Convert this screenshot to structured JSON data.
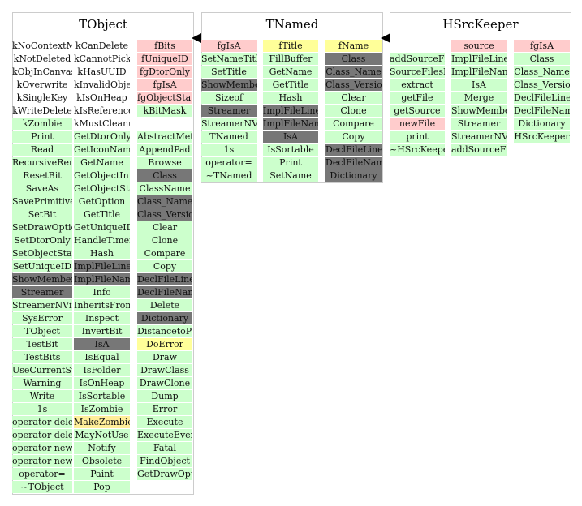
{
  "classes": [
    {
      "title": "TObject",
      "columns": [
        [
          {
            "t": "kNoContextMenu",
            "c": "plain"
          },
          {
            "t": "kNotDeleted",
            "c": "plain"
          },
          {
            "t": "kObjInCanvas",
            "c": "plain"
          },
          {
            "t": "kOverwrite",
            "c": "plain"
          },
          {
            "t": "kSingleKey",
            "c": "plain"
          },
          {
            "t": "kWriteDelete",
            "c": "plain"
          },
          {
            "t": "kZombie",
            "c": "g"
          },
          {
            "t": "Print",
            "c": "g"
          },
          {
            "t": "Read",
            "c": "g"
          },
          {
            "t": "RecursiveRemove",
            "c": "g"
          },
          {
            "t": "ResetBit",
            "c": "g"
          },
          {
            "t": "SaveAs",
            "c": "g"
          },
          {
            "t": "SavePrimitive",
            "c": "g"
          },
          {
            "t": "SetBit",
            "c": "g"
          },
          {
            "t": "SetDrawOption",
            "c": "g"
          },
          {
            "t": "SetDtorOnly",
            "c": "g"
          },
          {
            "t": "SetObjectStat",
            "c": "g"
          },
          {
            "t": "SetUniqueID",
            "c": "g"
          },
          {
            "t": "ShowMembers",
            "c": "d"
          },
          {
            "t": "Streamer",
            "c": "d"
          },
          {
            "t": "StreamerNVirtual",
            "c": "g"
          },
          {
            "t": "SysError",
            "c": "g"
          },
          {
            "t": "TObject",
            "c": "g"
          },
          {
            "t": "TestBit",
            "c": "g"
          },
          {
            "t": "TestBits",
            "c": "g"
          },
          {
            "t": "UseCurrentStyle",
            "c": "g"
          },
          {
            "t": "Warning",
            "c": "g"
          },
          {
            "t": "Write",
            "c": "g"
          },
          {
            "t": "1s",
            "c": "g"
          },
          {
            "t": "operator delete",
            "c": "g"
          },
          {
            "t": "operator delete[]",
            "c": "g"
          },
          {
            "t": "operator new",
            "c": "g"
          },
          {
            "t": "operator new[]",
            "c": "g"
          },
          {
            "t": "operator=",
            "c": "g"
          },
          {
            "t": "~TObject",
            "c": "g"
          }
        ],
        [
          {
            "t": "kCanDelete",
            "c": "plain"
          },
          {
            "t": "kCannotPick",
            "c": "plain"
          },
          {
            "t": "kHasUUID",
            "c": "plain"
          },
          {
            "t": "kInvalidObject",
            "c": "plain"
          },
          {
            "t": "kIsOnHeap",
            "c": "plain"
          },
          {
            "t": "kIsReferenced",
            "c": "plain"
          },
          {
            "t": "kMustCleanup",
            "c": "plain"
          },
          {
            "t": "GetDtorOnly",
            "c": "g"
          },
          {
            "t": "GetIconName",
            "c": "g"
          },
          {
            "t": "GetName",
            "c": "g"
          },
          {
            "t": "GetObjectInfo",
            "c": "g"
          },
          {
            "t": "GetObjectStat",
            "c": "g"
          },
          {
            "t": "GetOption",
            "c": "g"
          },
          {
            "t": "GetTitle",
            "c": "g"
          },
          {
            "t": "GetUniqueID",
            "c": "g"
          },
          {
            "t": "HandleTimer",
            "c": "g"
          },
          {
            "t": "Hash",
            "c": "g"
          },
          {
            "t": "ImplFileLine",
            "c": "d"
          },
          {
            "t": "ImplFileName",
            "c": "d"
          },
          {
            "t": "Info",
            "c": "g"
          },
          {
            "t": "InheritsFrom",
            "c": "g"
          },
          {
            "t": "Inspect",
            "c": "g"
          },
          {
            "t": "InvertBit",
            "c": "g"
          },
          {
            "t": "IsA",
            "c": "d"
          },
          {
            "t": "IsEqual",
            "c": "g"
          },
          {
            "t": "IsFolder",
            "c": "g"
          },
          {
            "t": "IsOnHeap",
            "c": "g"
          },
          {
            "t": "IsSortable",
            "c": "g"
          },
          {
            "t": "IsZombie",
            "c": "g"
          },
          {
            "t": "MakeZombie",
            "c": "y2"
          },
          {
            "t": "MayNotUse",
            "c": "g"
          },
          {
            "t": "Notify",
            "c": "g"
          },
          {
            "t": "Obsolete",
            "c": "g"
          },
          {
            "t": "Paint",
            "c": "g"
          },
          {
            "t": "Pop",
            "c": "g"
          }
        ],
        [
          {
            "t": "fBits",
            "c": "p"
          },
          {
            "t": "fUniqueID",
            "c": "p"
          },
          {
            "t": "fgDtorOnly",
            "c": "p"
          },
          {
            "t": "fgIsA",
            "c": "p"
          },
          {
            "t": "fgObjectStat",
            "c": "p"
          },
          {
            "t": "kBitMask",
            "c": "g"
          },
          {
            "t": "",
            "c": "blank"
          },
          {
            "t": "AbstractMethod",
            "c": "g"
          },
          {
            "t": "AppendPad",
            "c": "g"
          },
          {
            "t": "Browse",
            "c": "g"
          },
          {
            "t": "Class",
            "c": "d"
          },
          {
            "t": "ClassName",
            "c": "g"
          },
          {
            "t": "Class_Name",
            "c": "d"
          },
          {
            "t": "Class_Version",
            "c": "d"
          },
          {
            "t": "Clear",
            "c": "g"
          },
          {
            "t": "Clone",
            "c": "g"
          },
          {
            "t": "Compare",
            "c": "g"
          },
          {
            "t": "Copy",
            "c": "g"
          },
          {
            "t": "DeclFileLine",
            "c": "d"
          },
          {
            "t": "DeclFileName",
            "c": "d"
          },
          {
            "t": "Delete",
            "c": "g"
          },
          {
            "t": "Dictionary",
            "c": "d"
          },
          {
            "t": "DistancetoPrimitive",
            "c": "g"
          },
          {
            "t": "DoError",
            "c": "y"
          },
          {
            "t": "Draw",
            "c": "g"
          },
          {
            "t": "DrawClass",
            "c": "g"
          },
          {
            "t": "DrawClone",
            "c": "g"
          },
          {
            "t": "Dump",
            "c": "g"
          },
          {
            "t": "Error",
            "c": "g"
          },
          {
            "t": "Execute",
            "c": "g"
          },
          {
            "t": "ExecuteEvent",
            "c": "g"
          },
          {
            "t": "Fatal",
            "c": "g"
          },
          {
            "t": "FindObject",
            "c": "g"
          },
          {
            "t": "GetDrawOption",
            "c": "g"
          }
        ]
      ]
    },
    {
      "title": "TNamed",
      "columns": [
        [
          {
            "t": "fgIsA",
            "c": "p"
          },
          {
            "t": "SetNameTitle",
            "c": "g"
          },
          {
            "t": "SetTitle",
            "c": "g"
          },
          {
            "t": "ShowMembers",
            "c": "d"
          },
          {
            "t": "Sizeof",
            "c": "g"
          },
          {
            "t": "Streamer",
            "c": "d"
          },
          {
            "t": "StreamerNVirtual",
            "c": "g"
          },
          {
            "t": "TNamed",
            "c": "g"
          },
          {
            "t": "1s",
            "c": "g"
          },
          {
            "t": "operator=",
            "c": "g"
          },
          {
            "t": "~TNamed",
            "c": "g"
          }
        ],
        [
          {
            "t": "fTitle",
            "c": "y"
          },
          {
            "t": "FillBuffer",
            "c": "g"
          },
          {
            "t": "GetName",
            "c": "g"
          },
          {
            "t": "GetTitle",
            "c": "g"
          },
          {
            "t": "Hash",
            "c": "g"
          },
          {
            "t": "ImplFileLine",
            "c": "d"
          },
          {
            "t": "ImplFileName",
            "c": "d"
          },
          {
            "t": "IsA",
            "c": "d"
          },
          {
            "t": "IsSortable",
            "c": "g"
          },
          {
            "t": "Print",
            "c": "g"
          },
          {
            "t": "SetName",
            "c": "g"
          }
        ],
        [
          {
            "t": "fName",
            "c": "y"
          },
          {
            "t": "Class",
            "c": "d"
          },
          {
            "t": "Class_Name",
            "c": "d"
          },
          {
            "t": "Class_Version",
            "c": "d"
          },
          {
            "t": "Clear",
            "c": "g"
          },
          {
            "t": "Clone",
            "c": "g"
          },
          {
            "t": "Compare",
            "c": "g"
          },
          {
            "t": "Copy",
            "c": "g"
          },
          {
            "t": "DeclFileLine",
            "c": "d"
          },
          {
            "t": "DeclFileName",
            "c": "d"
          },
          {
            "t": "Dictionary",
            "c": "d"
          }
        ]
      ]
    },
    {
      "title": "HSrcKeeper",
      "columns": [
        [
          {
            "t": "",
            "c": "blank"
          },
          {
            "t": "addSourceFiles",
            "c": "g"
          },
          {
            "t": "SourceFilesRecursive",
            "c": "g"
          },
          {
            "t": "extract",
            "c": "g"
          },
          {
            "t": "getFile",
            "c": "g"
          },
          {
            "t": "getSource",
            "c": "g"
          },
          {
            "t": "newFile",
            "c": "p"
          },
          {
            "t": "print",
            "c": "g"
          },
          {
            "t": "~HSrcKeeper",
            "c": "g"
          }
        ],
        [
          {
            "t": "source",
            "c": "p"
          },
          {
            "t": "ImplFileLine",
            "c": "g"
          },
          {
            "t": "ImplFileName",
            "c": "g"
          },
          {
            "t": "IsA",
            "c": "g"
          },
          {
            "t": "Merge",
            "c": "g"
          },
          {
            "t": "ShowMembers",
            "c": "g"
          },
          {
            "t": "Streamer",
            "c": "g"
          },
          {
            "t": "StreamerNVirtual",
            "c": "g"
          },
          {
            "t": "addSourceFile",
            "c": "g"
          }
        ],
        [
          {
            "t": "fgIsA",
            "c": "p"
          },
          {
            "t": "Class",
            "c": "g"
          },
          {
            "t": "Class_Name",
            "c": "g"
          },
          {
            "t": "Class_Version",
            "c": "g"
          },
          {
            "t": "DeclFileLine",
            "c": "g"
          },
          {
            "t": "DeclFileName",
            "c": "g"
          },
          {
            "t": "Dictionary",
            "c": "g"
          },
          {
            "t": "HSrcKeeper",
            "c": "g"
          }
        ]
      ]
    }
  ]
}
